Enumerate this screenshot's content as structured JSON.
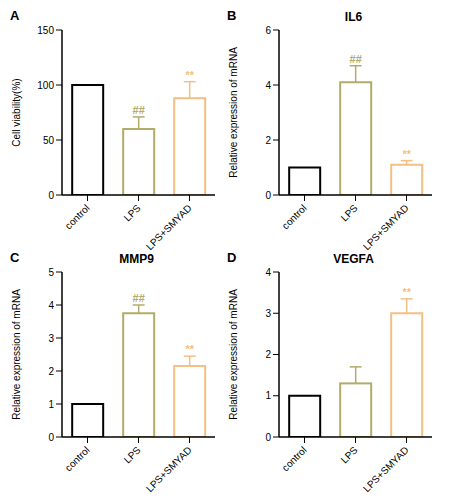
{
  "chart_data": [
    {
      "type": "bar",
      "panel": "A",
      "ylabel": "Cell viability(%)",
      "categories": [
        "control",
        "LPS",
        "LPS+SMYAD"
      ],
      "values": [
        100,
        60,
        88
      ],
      "errors": [
        0,
        11,
        15
      ],
      "marks": [
        null,
        "##",
        "**"
      ],
      "colors": [
        "#000000",
        "#b3ab6a",
        "#f4bf84"
      ],
      "ylim": [
        0,
        150
      ],
      "yticks": [
        0,
        50,
        100,
        150
      ],
      "grid": false
    },
    {
      "type": "bar",
      "panel": "B",
      "title": "IL6",
      "ylabel": "Relative expression of  mRNA",
      "categories": [
        "control",
        "LPS",
        "LPS+SMYAD"
      ],
      "values": [
        1,
        4.1,
        1.1
      ],
      "errors": [
        0,
        0.6,
        0.15
      ],
      "marks": [
        null,
        "##",
        "**"
      ],
      "colors": [
        "#000000",
        "#b3ab6a",
        "#f4bf84"
      ],
      "ylim": [
        0,
        6
      ],
      "yticks": [
        0,
        2,
        4,
        6
      ],
      "grid": false
    },
    {
      "type": "bar",
      "panel": "C",
      "title": "MMP9",
      "ylabel": "Relative expression of  mRNA",
      "categories": [
        "control",
        "LPS",
        "LPS+SMYAD"
      ],
      "values": [
        1,
        3.75,
        2.15
      ],
      "errors": [
        0,
        0.25,
        0.3
      ],
      "marks": [
        null,
        "##",
        "**"
      ],
      "colors": [
        "#000000",
        "#b3ab6a",
        "#f4bf84"
      ],
      "ylim": [
        0,
        5
      ],
      "yticks": [
        0,
        1,
        2,
        3,
        4,
        5
      ],
      "grid": false
    },
    {
      "type": "bar",
      "panel": "D",
      "title": "VEGFA",
      "ylabel": "Relative expression of  mRNA",
      "categories": [
        "control",
        "LPS",
        "LPS+SMYAD"
      ],
      "values": [
        1,
        1.3,
        3.0
      ],
      "errors": [
        0,
        0.4,
        0.35
      ],
      "marks": [
        null,
        null,
        "**"
      ],
      "colors": [
        "#000000",
        "#b3ab6a",
        "#f4bf84"
      ],
      "ylim": [
        0,
        4
      ],
      "yticks": [
        0,
        1,
        2,
        3,
        4
      ],
      "grid": false
    }
  ]
}
